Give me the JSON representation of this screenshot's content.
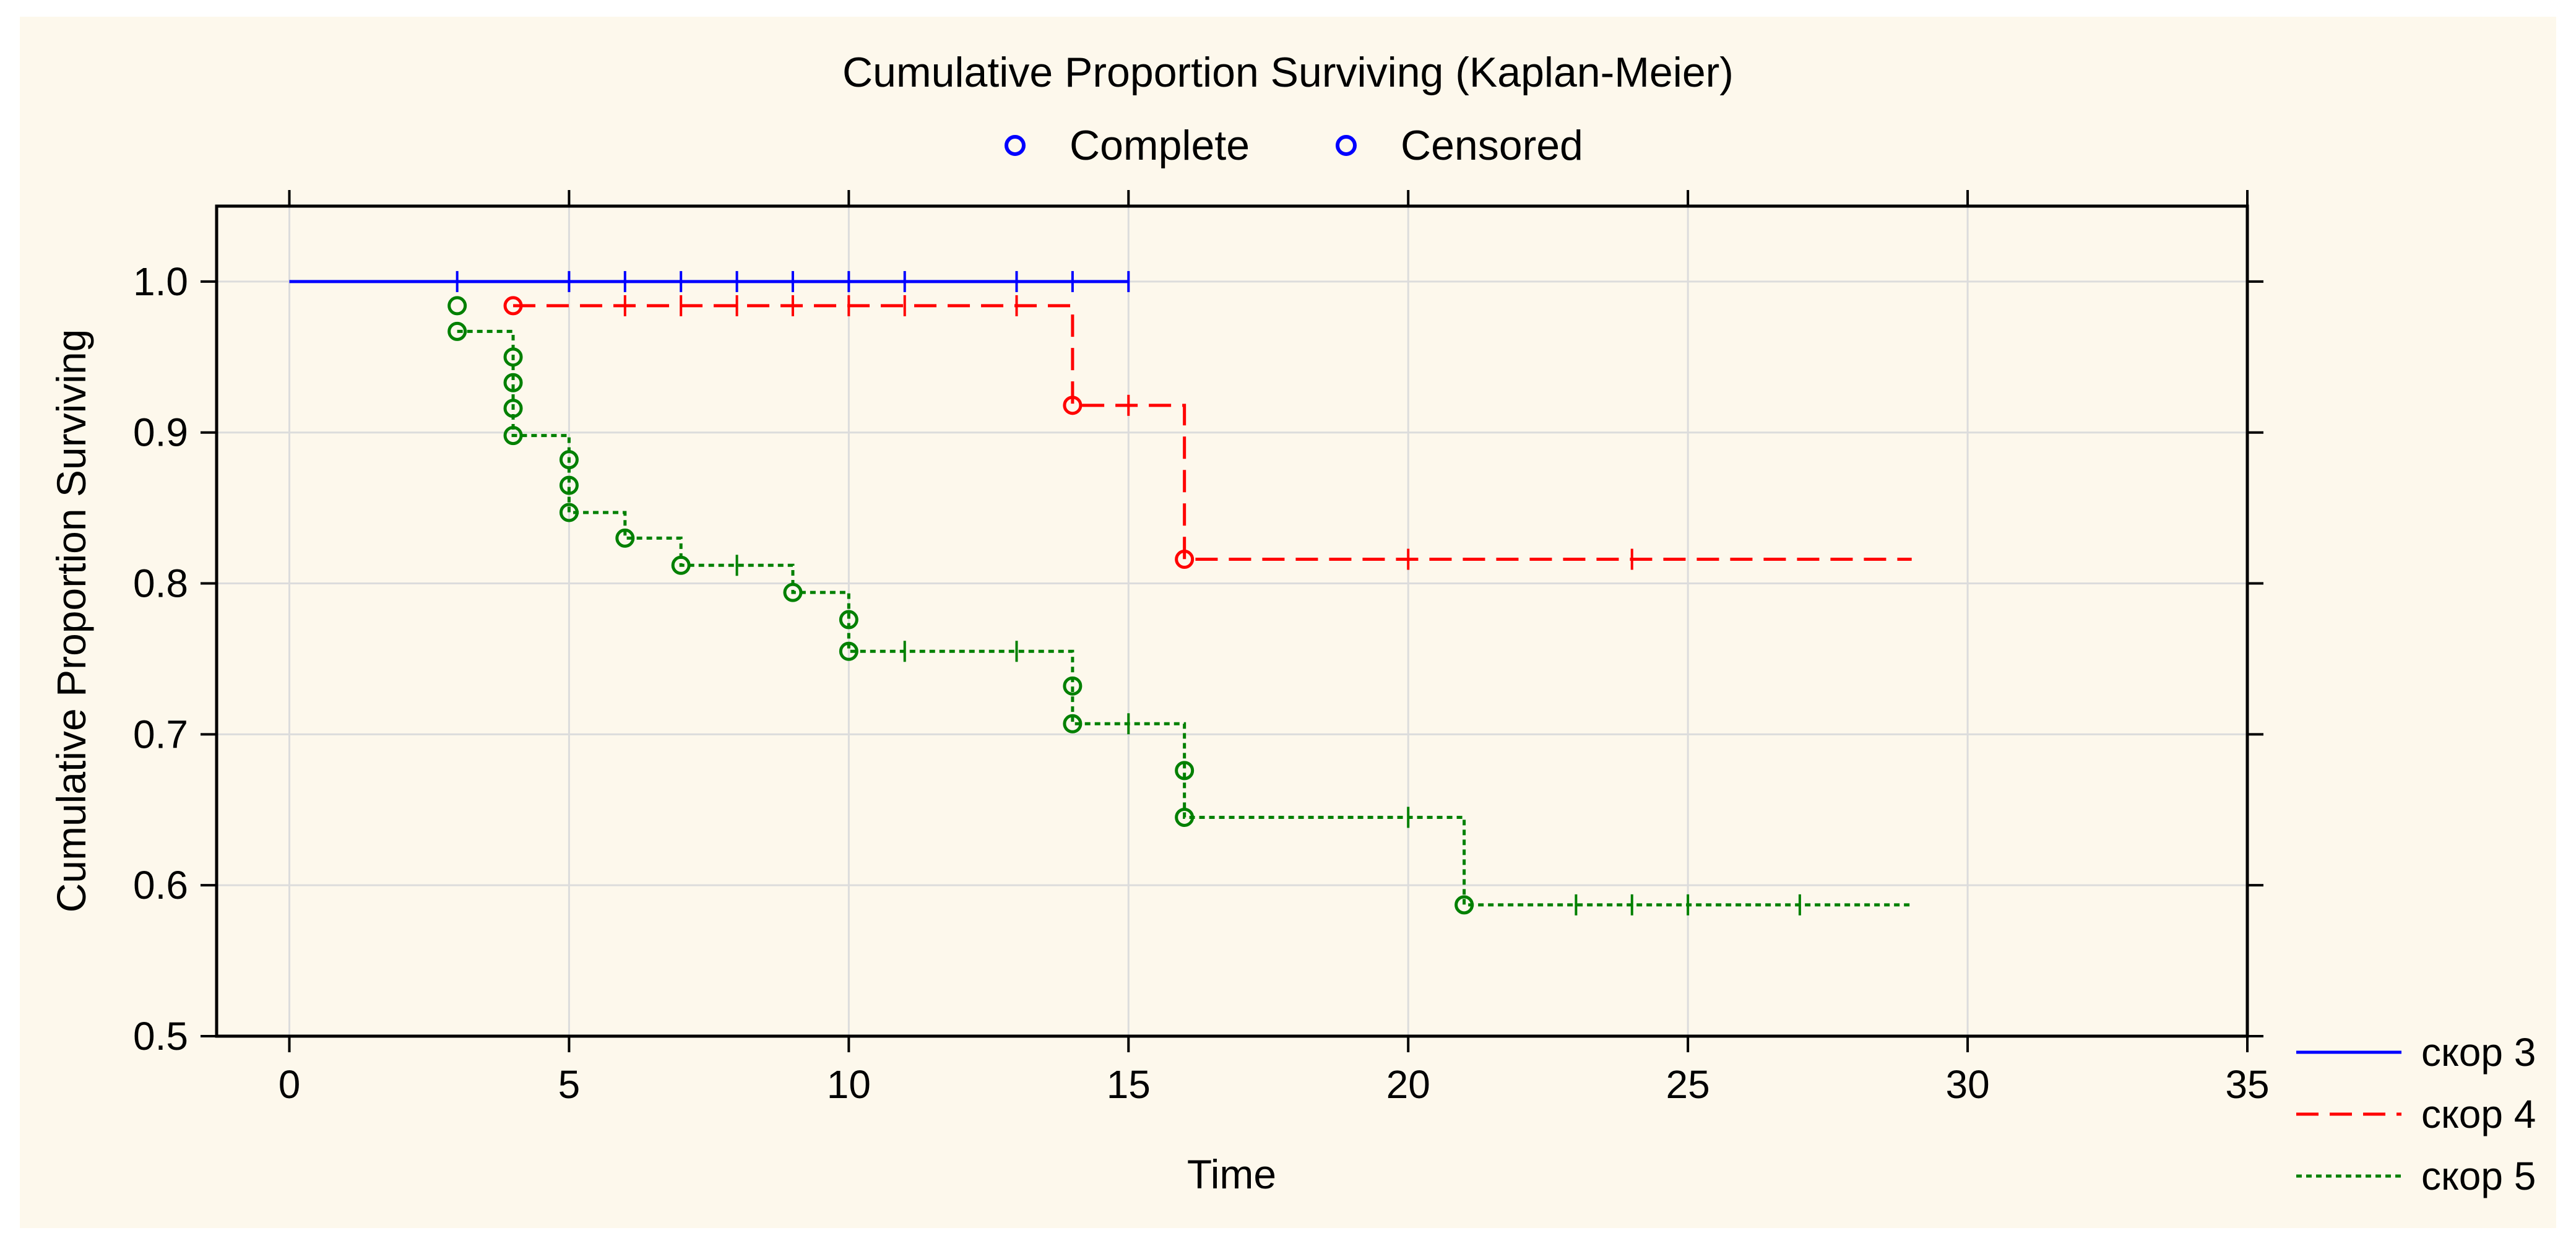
{
  "chart_data": {
    "type": "line",
    "title": "Cumulative Proportion Surviving (Kaplan-Meier)",
    "xlabel": "Time",
    "ylabel": "Cumulative Proportion Surviving",
    "xlim": [
      -1.3,
      35
    ],
    "ylim": [
      0.5,
      1.05
    ],
    "x_ticks": [
      "0",
      "5",
      "10",
      "15",
      "20",
      "25",
      "30",
      "35"
    ],
    "y_ticks": [
      "1.0",
      "0.9",
      "0.8",
      "0.7",
      "0.6",
      "0.5"
    ],
    "grid": true,
    "background_color": "#fdf8ec",
    "marker_legend": {
      "placement": "top",
      "items": [
        {
          "label": "Complete",
          "symbol": "circle",
          "color": "#0000ff"
        },
        {
          "label": "Censored",
          "symbol": "circle",
          "color": "#0000ff"
        }
      ]
    },
    "series_legend": {
      "placement": "bottom-right",
      "items": [
        {
          "label": "скор 3",
          "color": "#0000ff",
          "dash": "solid"
        },
        {
          "label": "скор 4",
          "color": "#ff0000",
          "dash": "dashed"
        },
        {
          "label": "скор 5",
          "color": "#008000",
          "dash": "dotted"
        }
      ]
    },
    "series": [
      {
        "name": "скор 3",
        "color": "#0000ff",
        "style": "solid",
        "start_time": 0,
        "end_time": 15,
        "steps": [
          [
            0,
            1.0
          ]
        ],
        "complete": [],
        "censored": [
          [
            3,
            1.0
          ],
          [
            5,
            1.0
          ],
          [
            6,
            1.0
          ],
          [
            7,
            1.0
          ],
          [
            8,
            1.0
          ],
          [
            9,
            1.0
          ],
          [
            10,
            1.0
          ],
          [
            11,
            1.0
          ],
          [
            13,
            1.0
          ],
          [
            14,
            1.0
          ],
          [
            15,
            1.0
          ]
        ]
      },
      {
        "name": "скор 4",
        "color": "#ff0000",
        "style": "dashed",
        "start_time": 4,
        "end_time": 29,
        "steps": [
          [
            4,
            0.984
          ],
          [
            14,
            0.918
          ],
          [
            16,
            0.816
          ]
        ],
        "complete": [
          [
            4,
            0.984
          ],
          [
            14,
            0.918
          ],
          [
            16,
            0.816
          ]
        ],
        "censored": [
          [
            6,
            0.984
          ],
          [
            7,
            0.984
          ],
          [
            8,
            0.984
          ],
          [
            9,
            0.984
          ],
          [
            10,
            0.984
          ],
          [
            11,
            0.984
          ],
          [
            13,
            0.984
          ],
          [
            15,
            0.918
          ],
          [
            20,
            0.816
          ],
          [
            24,
            0.816
          ]
        ]
      },
      {
        "name": "скор 5",
        "color": "#008000",
        "style": "dotted",
        "start_time": 3,
        "end_time": 29,
        "steps": [
          [
            3,
            0.967
          ],
          [
            4,
            0.898
          ],
          [
            5,
            0.847
          ],
          [
            6,
            0.83
          ],
          [
            7,
            0.812
          ],
          [
            9,
            0.794
          ],
          [
            10,
            0.755
          ],
          [
            14,
            0.707
          ],
          [
            16,
            0.645
          ],
          [
            21,
            0.587
          ]
        ],
        "complete": [
          [
            3,
            0.984
          ],
          [
            3,
            0.967
          ],
          [
            4,
            0.95
          ],
          [
            4,
            0.933
          ],
          [
            4,
            0.916
          ],
          [
            4,
            0.898
          ],
          [
            5,
            0.882
          ],
          [
            5,
            0.865
          ],
          [
            5,
            0.847
          ],
          [
            6,
            0.83
          ],
          [
            7,
            0.812
          ],
          [
            9,
            0.794
          ],
          [
            10,
            0.776
          ],
          [
            10,
            0.755
          ],
          [
            14,
            0.732
          ],
          [
            14,
            0.707
          ],
          [
            16,
            0.676
          ],
          [
            16,
            0.645
          ],
          [
            21,
            0.587
          ]
        ],
        "censored": [
          [
            8,
            0.812
          ],
          [
            11,
            0.755
          ],
          [
            13,
            0.755
          ],
          [
            15,
            0.707
          ],
          [
            20,
            0.645
          ],
          [
            23,
            0.587
          ],
          [
            24,
            0.587
          ],
          [
            25,
            0.587
          ],
          [
            27,
            0.587
          ]
        ]
      }
    ]
  }
}
